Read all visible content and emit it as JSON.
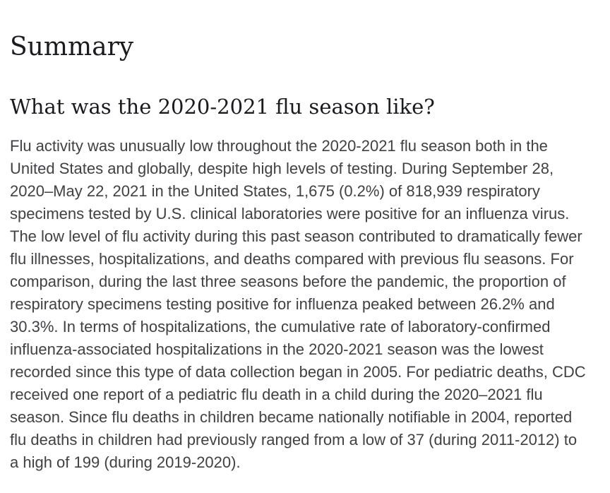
{
  "colors": {
    "page-bg": "#ffffff",
    "heading-color": "#1a1b1e",
    "body-color": "#404045"
  },
  "document": {
    "title": "Summary",
    "section_heading": "What was the 2020-2021 flu season like?",
    "paragraph": "Flu activity was unusually low throughout the 2020-2021 flu season both in the United States and globally, despite high levels of testing. During September 28, 2020–May 22, 2021 in the United States, 1,675 (0.2%) of 818,939 respiratory specimens tested by U.S. clinical laboratories were positive for an influenza virus. The low level of flu activity during this past season contributed to dramatically fewer flu illnesses, hospitalizations, and deaths compared with previous flu seasons. For comparison, during the last three seasons before the pandemic, the proportion of respiratory specimens testing positive for influenza peaked between 26.2% and 30.3%. In terms of hospitalizations, the cumulative rate of laboratory-confirmed influenza-associated hospitalizations in the 2020-2021 season was the lowest recorded since this type of data collection began in 2005. For pediatric deaths, CDC received one report of a pediatric flu death in a child during the 2020–2021 flu season. Since flu deaths in children became nationally notifiable in 2004, reported flu deaths in children had previously ranged from a low of 37 (during 2011-2012) to a high of 199 (during 2019-2020)."
  }
}
